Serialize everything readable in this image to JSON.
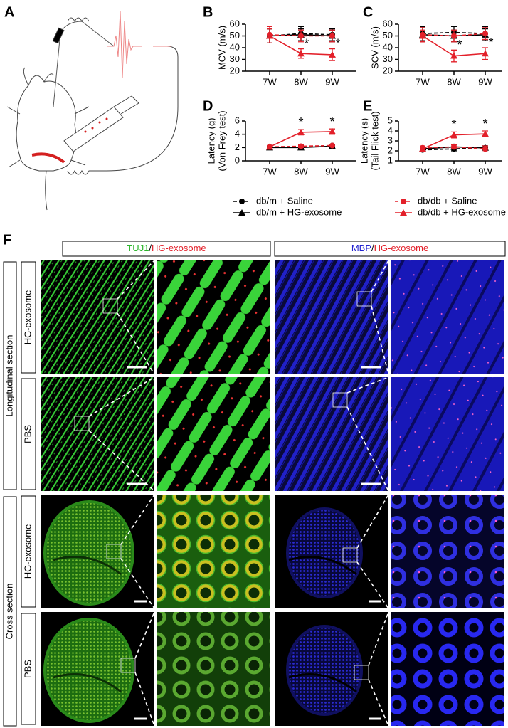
{
  "panels": {
    "a": "A",
    "b": "B",
    "c": "C",
    "d": "D",
    "e": "E",
    "f": "F"
  },
  "legend": [
    {
      "name": "db/m + Saline",
      "color": "#000000",
      "marker": "circle",
      "dash": true
    },
    {
      "name": "db/m + HG-exosome",
      "color": "#000000",
      "marker": "triangle",
      "dash": false
    },
    {
      "name": "db/db + Saline",
      "color": "#e3202a",
      "marker": "circle",
      "dash": true
    },
    {
      "name": "db/db + HG-exosome",
      "color": "#e3202a",
      "marker": "triangle",
      "dash": false
    }
  ],
  "chart_data": [
    {
      "type": "line",
      "ylabel": [
        "MCV (m/s)"
      ],
      "categories": [
        "7W",
        "8W",
        "9W"
      ],
      "ylim": [
        20,
        60
      ],
      "yticks": [
        20,
        30,
        40,
        50,
        60
      ],
      "series": [
        {
          "values": [
            50,
            52,
            51
          ],
          "errors": [
            6,
            6,
            5
          ]
        },
        {
          "values": [
            50,
            51,
            50
          ],
          "errors": [
            6,
            5,
            5
          ]
        },
        {
          "values": [
            51,
            50,
            50
          ],
          "errors": [
            7,
            5,
            5
          ]
        },
        {
          "values": [
            50,
            35,
            34
          ],
          "errors": [
            6,
            4,
            5
          ]
        }
      ],
      "annotations": [
        {
          "category": "8W",
          "text": "*"
        },
        {
          "category": "9W",
          "text": "*"
        }
      ]
    },
    {
      "type": "line",
      "ylabel": [
        "SCV (m/s)"
      ],
      "categories": [
        "7W",
        "8W",
        "9W"
      ],
      "ylim": [
        20,
        60
      ],
      "yticks": [
        20,
        30,
        40,
        50,
        60
      ],
      "series": [
        {
          "values": [
            52,
            53,
            52
          ],
          "errors": [
            6,
            5,
            6
          ]
        },
        {
          "values": [
            51,
            50,
            51
          ],
          "errors": [
            6,
            5,
            5
          ]
        },
        {
          "values": [
            51,
            50,
            52
          ],
          "errors": [
            6,
            5,
            5
          ]
        },
        {
          "values": [
            50,
            33,
            35
          ],
          "errors": [
            5,
            5,
            5
          ]
        }
      ],
      "annotations": [
        {
          "category": "8W",
          "text": "*"
        },
        {
          "category": "9W",
          "text": "*"
        }
      ]
    },
    {
      "type": "line",
      "ylabel": [
        "Latency (g)",
        "(Von Frey test)"
      ],
      "categories": [
        "7W",
        "8W",
        "9W"
      ],
      "ylim": [
        0,
        6
      ],
      "yticks": [
        0,
        2,
        4,
        6
      ],
      "series": [
        {
          "values": [
            2.1,
            2.1,
            2.3
          ],
          "errors": [
            0.2,
            0.2,
            0.2
          ]
        },
        {
          "values": [
            2.0,
            2.0,
            2.2
          ],
          "errors": [
            0.2,
            0.2,
            0.2
          ]
        },
        {
          "values": [
            2.1,
            2.2,
            2.3
          ],
          "errors": [
            0.2,
            0.2,
            0.2
          ]
        },
        {
          "values": [
            2.1,
            4.3,
            4.4
          ],
          "errors": [
            0.2,
            0.4,
            0.4
          ]
        }
      ],
      "annotations": [
        {
          "category": "8W",
          "text": "*"
        },
        {
          "category": "9W",
          "text": "*"
        }
      ]
    },
    {
      "type": "line",
      "ylabel": [
        "Latency (s)",
        "(Tail Flick test)"
      ],
      "categories": [
        "7W",
        "8W",
        "9W"
      ],
      "ylim": [
        1,
        5
      ],
      "yticks": [
        1,
        2,
        3,
        4,
        5
      ],
      "series": [
        {
          "values": [
            2.1,
            2.2,
            2.3
          ],
          "errors": [
            0.2,
            0.2,
            0.2
          ]
        },
        {
          "values": [
            2.2,
            2.4,
            2.3
          ],
          "errors": [
            0.2,
            0.2,
            0.2
          ]
        },
        {
          "values": [
            2.3,
            2.4,
            2.2
          ],
          "errors": [
            0.2,
            0.2,
            0.3
          ]
        },
        {
          "values": [
            2.2,
            3.6,
            3.7
          ],
          "errors": [
            0.2,
            0.3,
            0.3
          ]
        }
      ],
      "annotations": [
        {
          "category": "8W",
          "text": "*"
        },
        {
          "category": "9W",
          "text": "*"
        }
      ]
    }
  ],
  "figure_f": {
    "headers": [
      {
        "marker": "TUJ1",
        "separator": "/",
        "tracer": "HG-exosome"
      },
      {
        "marker": "MBP",
        "separator": "/",
        "tracer": "HG-exosome"
      }
    ],
    "groups": [
      "Longitudinal section",
      "Cross section"
    ],
    "rows": [
      "HG-exosome",
      "PBS",
      "HG-exosome",
      "PBS"
    ]
  }
}
